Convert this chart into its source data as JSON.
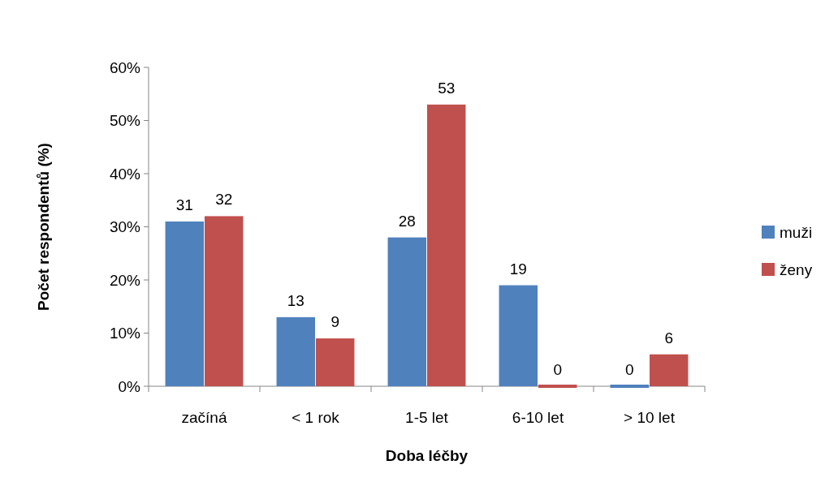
{
  "chart_data": {
    "type": "bar",
    "xlabel": "Doba léčby",
    "ylabel": "Počet respondentů (%)",
    "categories": [
      "začíná",
      "< 1 rok",
      "1-5 let",
      "6-10 let",
      "> 10 let"
    ],
    "series": [
      {
        "name": "muži",
        "color": "#4f81bd",
        "values": [
          31,
          13,
          28,
          19,
          0
        ]
      },
      {
        "name": "ženy",
        "color": "#c0504d",
        "values": [
          32,
          9,
          53,
          0,
          6
        ]
      }
    ],
    "ylim": [
      0,
      60
    ],
    "yticks": [
      {
        "value": 0,
        "label": "0%"
      },
      {
        "value": 10,
        "label": "10%"
      },
      {
        "value": 20,
        "label": "20%"
      },
      {
        "value": 30,
        "label": "30%"
      },
      {
        "value": 40,
        "label": "40%"
      },
      {
        "value": 50,
        "label": "50%"
      },
      {
        "value": 60,
        "label": "60%"
      }
    ],
    "data_labels": true,
    "legend": "right",
    "grid": false
  }
}
